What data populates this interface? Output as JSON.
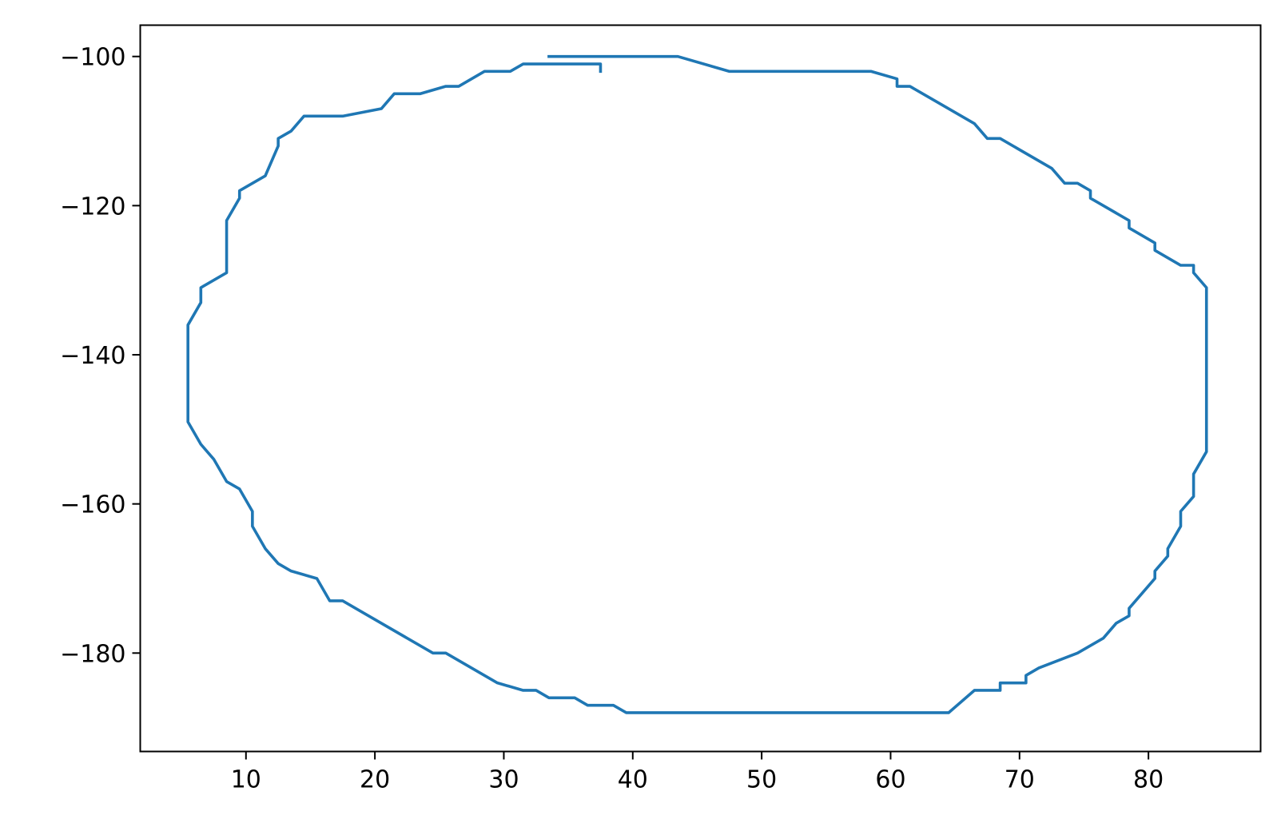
{
  "chart_data": {
    "type": "line",
    "title": "",
    "xlabel": "",
    "ylabel": "",
    "xlim": [
      1.8,
      88.7
    ],
    "ylim": [
      -193.2,
      -95.8
    ],
    "grid": false,
    "legend": "none",
    "x_ticks": [
      10,
      20,
      30,
      40,
      50,
      60,
      70,
      80
    ],
    "y_ticks": [
      -100,
      -120,
      -140,
      -160,
      -180
    ],
    "x_tick_labels": [
      "10",
      "20",
      "30",
      "40",
      "50",
      "60",
      "70",
      "80"
    ],
    "y_tick_labels": [
      "−100",
      "−120",
      "−140",
      "−160",
      "−180"
    ],
    "series": [
      {
        "color": "#1f77b4",
        "x": [
          33.5,
          43.5,
          47.5,
          58.5,
          60.5,
          60.5,
          61.5,
          66.5,
          67.5,
          68.5,
          72.5,
          73.5,
          74.5,
          75.5,
          75.5,
          78.5,
          78.5,
          80.5,
          80.5,
          82.5,
          83.5,
          83.5,
          84.5,
          84.5,
          83.5,
          83.5,
          82.5,
          82.5,
          81.5,
          81.5,
          80.5,
          80.5,
          78.5,
          78.5,
          77.5,
          76.5,
          74.5,
          71.5,
          70.5,
          70.5,
          68.5,
          68.5,
          66.5,
          64.5,
          39.5,
          38.5,
          36.5,
          35.5,
          33.5,
          32.5,
          31.5,
          29.5,
          25.5,
          24.5,
          17.5,
          16.5,
          15.5,
          13.5,
          12.5,
          11.5,
          10.5,
          10.5,
          9.5,
          8.5,
          7.5,
          6.5,
          5.5,
          5.5,
          6.5,
          6.5,
          8.5,
          8.5,
          9.5,
          9.5,
          11.5,
          12.5,
          12.5,
          13.5,
          14.5,
          17.5,
          20.5,
          21.5,
          23.5,
          25.5,
          26.5,
          28.5,
          30.5,
          31.5,
          37.5,
          37.5
        ],
        "y": [
          -100,
          -100,
          -102,
          -102,
          -103,
          -104,
          -104,
          -109,
          -111,
          -111,
          -115,
          -117,
          -117,
          -118,
          -119,
          -122,
          -123,
          -125,
          -126,
          -128,
          -128,
          -129,
          -131,
          -153,
          -156,
          -159,
          -161,
          -163,
          -166,
          -167,
          -169,
          -170,
          -174,
          -175,
          -176,
          -178,
          -180,
          -182,
          -183,
          -184,
          -184,
          -185,
          -185,
          -188,
          -188,
          -187,
          -187,
          -186,
          -186,
          -185,
          -185,
          -184,
          -180,
          -180,
          -173,
          -173,
          -170,
          -169,
          -168,
          -166,
          -163,
          -161,
          -158,
          -157,
          -154,
          -152,
          -149,
          -136,
          -133,
          -131,
          -129,
          -122,
          -119,
          -118,
          -116,
          -112,
          -111,
          -110,
          -108,
          -108,
          -107,
          -105,
          -105,
          -104,
          -104,
          -102,
          -102,
          -101,
          -101,
          -102
        ]
      }
    ]
  }
}
